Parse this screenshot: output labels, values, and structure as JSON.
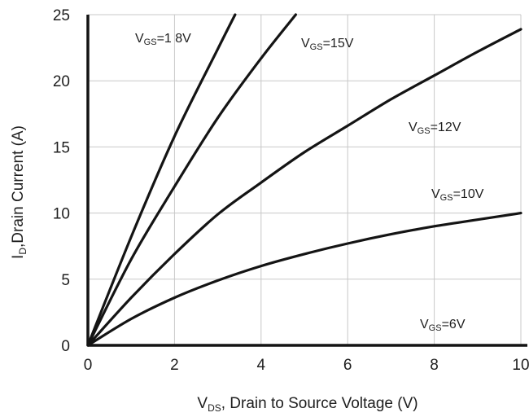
{
  "chart_data": {
    "type": "line",
    "xlabel": {
      "main": "V",
      "sub": "DS",
      "rest": ", Drain to Source Voltage  (V)"
    },
    "ylabel": {
      "main": "I",
      "sub": "D",
      "rest": ",Drain Current (A)"
    },
    "xlim": [
      0,
      10
    ],
    "ylim": [
      0,
      25
    ],
    "xticks": [
      "0",
      "2",
      "4",
      "6",
      "8",
      "10"
    ],
    "yticks": [
      "0",
      "5",
      "10",
      "15",
      "20",
      "25"
    ],
    "grid": true,
    "series": [
      {
        "name": {
          "main": "V",
          "sub": "GS",
          "rest": "=1   8V"
        },
        "x": [
          0,
          1,
          2,
          3,
          3.4
        ],
        "y": [
          0,
          8.2,
          15.8,
          22.4,
          25
        ]
      },
      {
        "name": {
          "main": "V",
          "sub": "GS",
          "rest": "=15V"
        },
        "x": [
          0,
          1,
          2,
          3,
          4,
          4.8
        ],
        "y": [
          0,
          6.5,
          12.0,
          17.2,
          21.7,
          25
        ]
      },
      {
        "name": {
          "main": "V",
          "sub": "GS",
          "rest": "=12V"
        },
        "x": [
          0,
          1,
          2,
          3,
          4,
          5,
          6,
          7,
          8,
          9,
          10
        ],
        "y": [
          0,
          3.6,
          6.9,
          9.9,
          12.3,
          14.6,
          16.6,
          18.6,
          20.4,
          22.2,
          23.9
        ]
      },
      {
        "name": {
          "main": "V",
          "sub": "GS",
          "rest": "=10V"
        },
        "x": [
          0,
          1,
          2,
          3,
          4,
          5,
          6,
          7,
          8,
          9,
          10
        ],
        "y": [
          0,
          2.0,
          3.6,
          4.9,
          6.0,
          6.9,
          7.7,
          8.4,
          9.0,
          9.5,
          10.0
        ]
      },
      {
        "name": {
          "main": "V",
          "sub": "GS",
          "rest": "=6V"
        },
        "x": [
          0,
          10
        ],
        "y": [
          0,
          0
        ]
      }
    ]
  }
}
